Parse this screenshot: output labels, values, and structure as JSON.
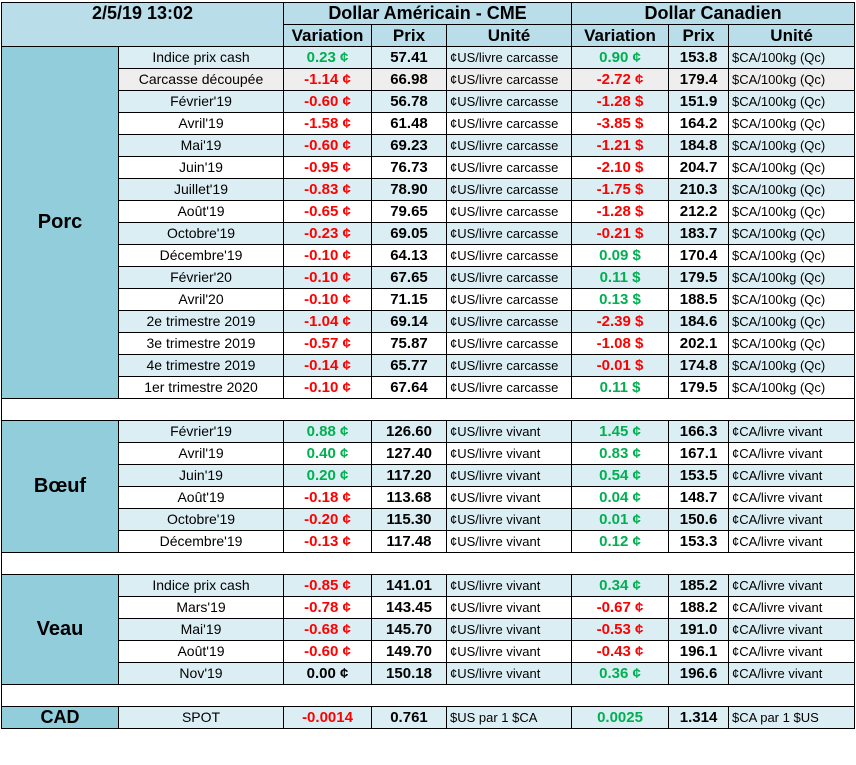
{
  "header": {
    "datetime": "2/5/19 13:02",
    "usd_group": "Dollar Américain - CME",
    "cad_group": "Dollar Canadien",
    "col_variation": "Variation",
    "col_prix": "Prix",
    "col_unite": "Unité"
  },
  "colors": {
    "header_bg": "#b9dde9",
    "category_bg": "#92cddc",
    "row_alt_bg": "#dbeef4",
    "negative": "#ff0000",
    "positive": "#00b050"
  },
  "sections": [
    {
      "category": "Porc",
      "rows": [
        {
          "label": "Indice prix cash",
          "us_var": "0.23 ¢",
          "us_var_sign": "pos",
          "us_price": "57.41",
          "us_unit": "¢US/livre carcasse",
          "ca_var": "0.90 ¢",
          "ca_var_sign": "pos",
          "ca_price": "153.8",
          "ca_unit": "$CA/100kg (Qc)",
          "style": "alt"
        },
        {
          "label": "Carcasse découpée",
          "us_var": "-1.14 ¢",
          "us_var_sign": "neg",
          "us_price": "66.98",
          "us_unit": "¢US/livre carcasse",
          "ca_var": "-2.72 ¢",
          "ca_var_sign": "neg",
          "ca_price": "179.4",
          "ca_unit": "$CA/100kg (Qc)",
          "style": "gray"
        },
        {
          "label": "Février'19",
          "us_var": "-0.60 ¢",
          "us_var_sign": "neg",
          "us_price": "56.78",
          "us_unit": "¢US/livre carcasse",
          "ca_var": "-1.28 $",
          "ca_var_sign": "neg",
          "ca_price": "151.9",
          "ca_unit": "$CA/100kg (Qc)",
          "style": "alt"
        },
        {
          "label": "Avril'19",
          "us_var": "-1.58 ¢",
          "us_var_sign": "neg",
          "us_price": "61.48",
          "us_unit": "¢US/livre carcasse",
          "ca_var": "-3.85 $",
          "ca_var_sign": "neg",
          "ca_price": "164.2",
          "ca_unit": "$CA/100kg (Qc)",
          "style": "plain"
        },
        {
          "label": "Mai'19",
          "us_var": "-0.60 ¢",
          "us_var_sign": "neg",
          "us_price": "69.23",
          "us_unit": "¢US/livre carcasse",
          "ca_var": "-1.21 $",
          "ca_var_sign": "neg",
          "ca_price": "184.8",
          "ca_unit": "$CA/100kg (Qc)",
          "style": "alt"
        },
        {
          "label": "Juin'19",
          "us_var": "-0.95 ¢",
          "us_var_sign": "neg",
          "us_price": "76.73",
          "us_unit": "¢US/livre carcasse",
          "ca_var": "-2.10 $",
          "ca_var_sign": "neg",
          "ca_price": "204.7",
          "ca_unit": "$CA/100kg (Qc)",
          "style": "plain"
        },
        {
          "label": "Juillet'19",
          "us_var": "-0.83 ¢",
          "us_var_sign": "neg",
          "us_price": "78.90",
          "us_unit": "¢US/livre carcasse",
          "ca_var": "-1.75 $",
          "ca_var_sign": "neg",
          "ca_price": "210.3",
          "ca_unit": "$CA/100kg (Qc)",
          "style": "alt"
        },
        {
          "label": "Août'19",
          "us_var": "-0.65 ¢",
          "us_var_sign": "neg",
          "us_price": "79.65",
          "us_unit": "¢US/livre carcasse",
          "ca_var": "-1.28 $",
          "ca_var_sign": "neg",
          "ca_price": "212.2",
          "ca_unit": "$CA/100kg (Qc)",
          "style": "plain"
        },
        {
          "label": "Octobre'19",
          "us_var": "-0.23 ¢",
          "us_var_sign": "neg",
          "us_price": "69.05",
          "us_unit": "¢US/livre carcasse",
          "ca_var": "-0.21 $",
          "ca_var_sign": "neg",
          "ca_price": "183.7",
          "ca_unit": "$CA/100kg (Qc)",
          "style": "alt"
        },
        {
          "label": "Décembre'19",
          "us_var": "-0.10 ¢",
          "us_var_sign": "neg",
          "us_price": "64.13",
          "us_unit": "¢US/livre carcasse",
          "ca_var": "0.09 $",
          "ca_var_sign": "pos",
          "ca_price": "170.4",
          "ca_unit": "$CA/100kg (Qc)",
          "style": "plain"
        },
        {
          "label": "Février'20",
          "us_var": "-0.10 ¢",
          "us_var_sign": "neg",
          "us_price": "67.65",
          "us_unit": "¢US/livre carcasse",
          "ca_var": "0.11 $",
          "ca_var_sign": "pos",
          "ca_price": "179.5",
          "ca_unit": "$CA/100kg (Qc)",
          "style": "alt"
        },
        {
          "label": "Avril'20",
          "us_var": "-0.10 ¢",
          "us_var_sign": "neg",
          "us_price": "71.15",
          "us_unit": "¢US/livre carcasse",
          "ca_var": "0.13 $",
          "ca_var_sign": "pos",
          "ca_price": "188.5",
          "ca_unit": "$CA/100kg (Qc)",
          "style": "plain"
        },
        {
          "label": "2e trimestre 2019",
          "us_var": "-1.04 ¢",
          "us_var_sign": "neg",
          "us_price": "69.14",
          "us_unit": "¢US/livre carcasse",
          "ca_var": "-2.39 $",
          "ca_var_sign": "neg",
          "ca_price": "184.6",
          "ca_unit": "$CA/100kg (Qc)",
          "style": "alt"
        },
        {
          "label": "3e trimestre 2019",
          "us_var": "-0.57 ¢",
          "us_var_sign": "neg",
          "us_price": "75.87",
          "us_unit": "¢US/livre carcasse",
          "ca_var": "-1.08 $",
          "ca_var_sign": "neg",
          "ca_price": "202.1",
          "ca_unit": "$CA/100kg (Qc)",
          "style": "plain"
        },
        {
          "label": "4e trimestre 2019",
          "us_var": "-0.14 ¢",
          "us_var_sign": "neg",
          "us_price": "65.77",
          "us_unit": "¢US/livre carcasse",
          "ca_var": "-0.01 $",
          "ca_var_sign": "neg",
          "ca_price": "174.8",
          "ca_unit": "$CA/100kg (Qc)",
          "style": "alt"
        },
        {
          "label": "1er trimestre 2020",
          "us_var": "-0.10 ¢",
          "us_var_sign": "neg",
          "us_price": "67.64",
          "us_unit": "¢US/livre carcasse",
          "ca_var": "0.11 $",
          "ca_var_sign": "pos",
          "ca_price": "179.5",
          "ca_unit": "$CA/100kg (Qc)",
          "style": "plain"
        }
      ]
    },
    {
      "category": "Bœuf",
      "rows": [
        {
          "label": "Février'19",
          "us_var": "0.88 ¢",
          "us_var_sign": "pos",
          "us_price": "126.60",
          "us_unit": "¢US/livre vivant",
          "ca_var": "1.45 ¢",
          "ca_var_sign": "pos",
          "ca_price": "166.3",
          "ca_unit": "¢CA/livre vivant",
          "style": "alt"
        },
        {
          "label": "Avril'19",
          "us_var": "0.40 ¢",
          "us_var_sign": "pos",
          "us_price": "127.40",
          "us_unit": "¢US/livre vivant",
          "ca_var": "0.83 ¢",
          "ca_var_sign": "pos",
          "ca_price": "167.1",
          "ca_unit": "¢CA/livre vivant",
          "style": "plain"
        },
        {
          "label": "Juin'19",
          "us_var": "0.20 ¢",
          "us_var_sign": "pos",
          "us_price": "117.20",
          "us_unit": "¢US/livre vivant",
          "ca_var": "0.54 ¢",
          "ca_var_sign": "pos",
          "ca_price": "153.5",
          "ca_unit": "¢CA/livre vivant",
          "style": "alt"
        },
        {
          "label": "Août'19",
          "us_var": "-0.18 ¢",
          "us_var_sign": "neg",
          "us_price": "113.68",
          "us_unit": "¢US/livre vivant",
          "ca_var": "0.04 ¢",
          "ca_var_sign": "pos",
          "ca_price": "148.7",
          "ca_unit": "¢CA/livre vivant",
          "style": "plain"
        },
        {
          "label": "Octobre'19",
          "us_var": "-0.20 ¢",
          "us_var_sign": "neg",
          "us_price": "115.30",
          "us_unit": "¢US/livre vivant",
          "ca_var": "0.01 ¢",
          "ca_var_sign": "pos",
          "ca_price": "150.6",
          "ca_unit": "¢CA/livre vivant",
          "style": "alt"
        },
        {
          "label": "Décembre'19",
          "us_var": "-0.13 ¢",
          "us_var_sign": "neg",
          "us_price": "117.48",
          "us_unit": "¢US/livre vivant",
          "ca_var": "0.12 ¢",
          "ca_var_sign": "pos",
          "ca_price": "153.3",
          "ca_unit": "¢CA/livre vivant",
          "style": "plain"
        }
      ]
    },
    {
      "category": "Veau",
      "rows": [
        {
          "label": "Indice prix cash",
          "us_var": "-0.85 ¢",
          "us_var_sign": "neg",
          "us_price": "141.01",
          "us_unit": "¢US/livre vivant",
          "ca_var": "0.34 ¢",
          "ca_var_sign": "pos",
          "ca_price": "185.2",
          "ca_unit": "¢CA/livre vivant",
          "style": "alt"
        },
        {
          "label": "Mars'19",
          "us_var": "-0.78 ¢",
          "us_var_sign": "neg",
          "us_price": "143.45",
          "us_unit": "¢US/livre vivant",
          "ca_var": "-0.67 ¢",
          "ca_var_sign": "neg",
          "ca_price": "188.2",
          "ca_unit": "¢CA/livre vivant",
          "style": "plain"
        },
        {
          "label": "Mai'19",
          "us_var": "-0.68 ¢",
          "us_var_sign": "neg",
          "us_price": "145.70",
          "us_unit": "¢US/livre vivant",
          "ca_var": "-0.53 ¢",
          "ca_var_sign": "neg",
          "ca_price": "191.0",
          "ca_unit": "¢CA/livre vivant",
          "style": "alt"
        },
        {
          "label": "Août'19",
          "us_var": "-0.60 ¢",
          "us_var_sign": "neg",
          "us_price": "149.70",
          "us_unit": "¢US/livre vivant",
          "ca_var": "-0.43 ¢",
          "ca_var_sign": "neg",
          "ca_price": "196.1",
          "ca_unit": "¢CA/livre vivant",
          "style": "plain"
        },
        {
          "label": "Nov'19",
          "us_var": "0.00 ¢",
          "us_var_sign": "zero",
          "us_price": "150.18",
          "us_unit": "¢US/livre vivant",
          "ca_var": "0.36 ¢",
          "ca_var_sign": "pos",
          "ca_price": "196.6",
          "ca_unit": "¢CA/livre vivant",
          "style": "alt"
        }
      ]
    }
  ],
  "cad": {
    "category": "CAD",
    "label": "SPOT",
    "us_var": "-0.0014",
    "us_var_sign": "neg",
    "us_price": "0.761",
    "us_unit": "$US par 1 $CA",
    "ca_var": "0.0025",
    "ca_var_sign": "pos",
    "ca_price": "1.314",
    "ca_unit": "$CA par 1 $US"
  }
}
